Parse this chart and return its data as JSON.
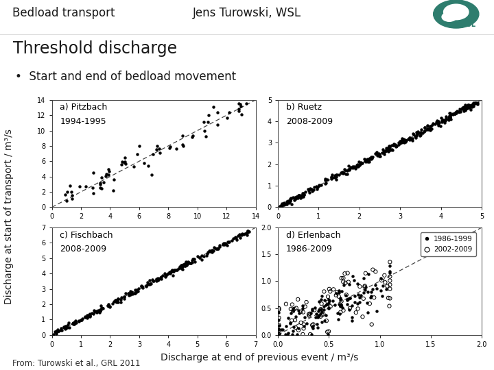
{
  "title_left": "Bedload transport",
  "title_center": "Jens Turowski, WSL",
  "slide_title": "Threshold discharge",
  "bullet": "Start and end of bedload movement",
  "xlabel": "Discharge at end of previous event / m³/s",
  "ylabel": "Discharge at start of transport / m³/s",
  "source": "From: Turowski et al., GRL 2011",
  "subplots": [
    {
      "label_line1": "a) Pitzbach",
      "label_line2": "1994-1995",
      "xlim": [
        0,
        14
      ],
      "ylim": [
        0,
        14
      ],
      "xticks": [
        0,
        2,
        4,
        6,
        8,
        10,
        12,
        14
      ],
      "yticks": [
        0,
        2,
        4,
        6,
        8,
        10,
        12,
        14
      ],
      "diag_line": [
        0,
        14
      ]
    },
    {
      "label_line1": "b) Ruetz",
      "label_line2": "2008-2009",
      "xlim": [
        0,
        5
      ],
      "ylim": [
        0,
        5
      ],
      "xticks": [
        0,
        1,
        2,
        3,
        4,
        5
      ],
      "yticks": [
        0,
        1,
        2,
        3,
        4,
        5
      ],
      "diag_line": [
        0,
        5
      ]
    },
    {
      "label_line1": "c) Fischbach",
      "label_line2": "2008-2009",
      "xlim": [
        0,
        7
      ],
      "ylim": [
        0,
        7
      ],
      "xticks": [
        0,
        1,
        2,
        3,
        4,
        5,
        6,
        7
      ],
      "yticks": [
        0,
        1,
        2,
        3,
        4,
        5,
        6,
        7
      ],
      "diag_line": [
        0,
        7
      ]
    },
    {
      "label_line1": "d) Erlenbach",
      "label_line2": "1986-2009",
      "xlim": [
        0.0,
        2.0
      ],
      "ylim": [
        0.0,
        2.0
      ],
      "xticks": [
        0.0,
        0.5,
        1.0,
        1.5,
        2.0
      ],
      "yticks": [
        0.0,
        0.5,
        1.0,
        1.5,
        2.0
      ],
      "diag_line": [
        0,
        2
      ]
    }
  ],
  "legend_labels": [
    "1986-1999",
    "2002-2009"
  ],
  "bg_color": "#ffffff",
  "header_bg": "#f0f0f0",
  "teal_color": "#2e7d6e",
  "text_color": "#1a1a1a"
}
